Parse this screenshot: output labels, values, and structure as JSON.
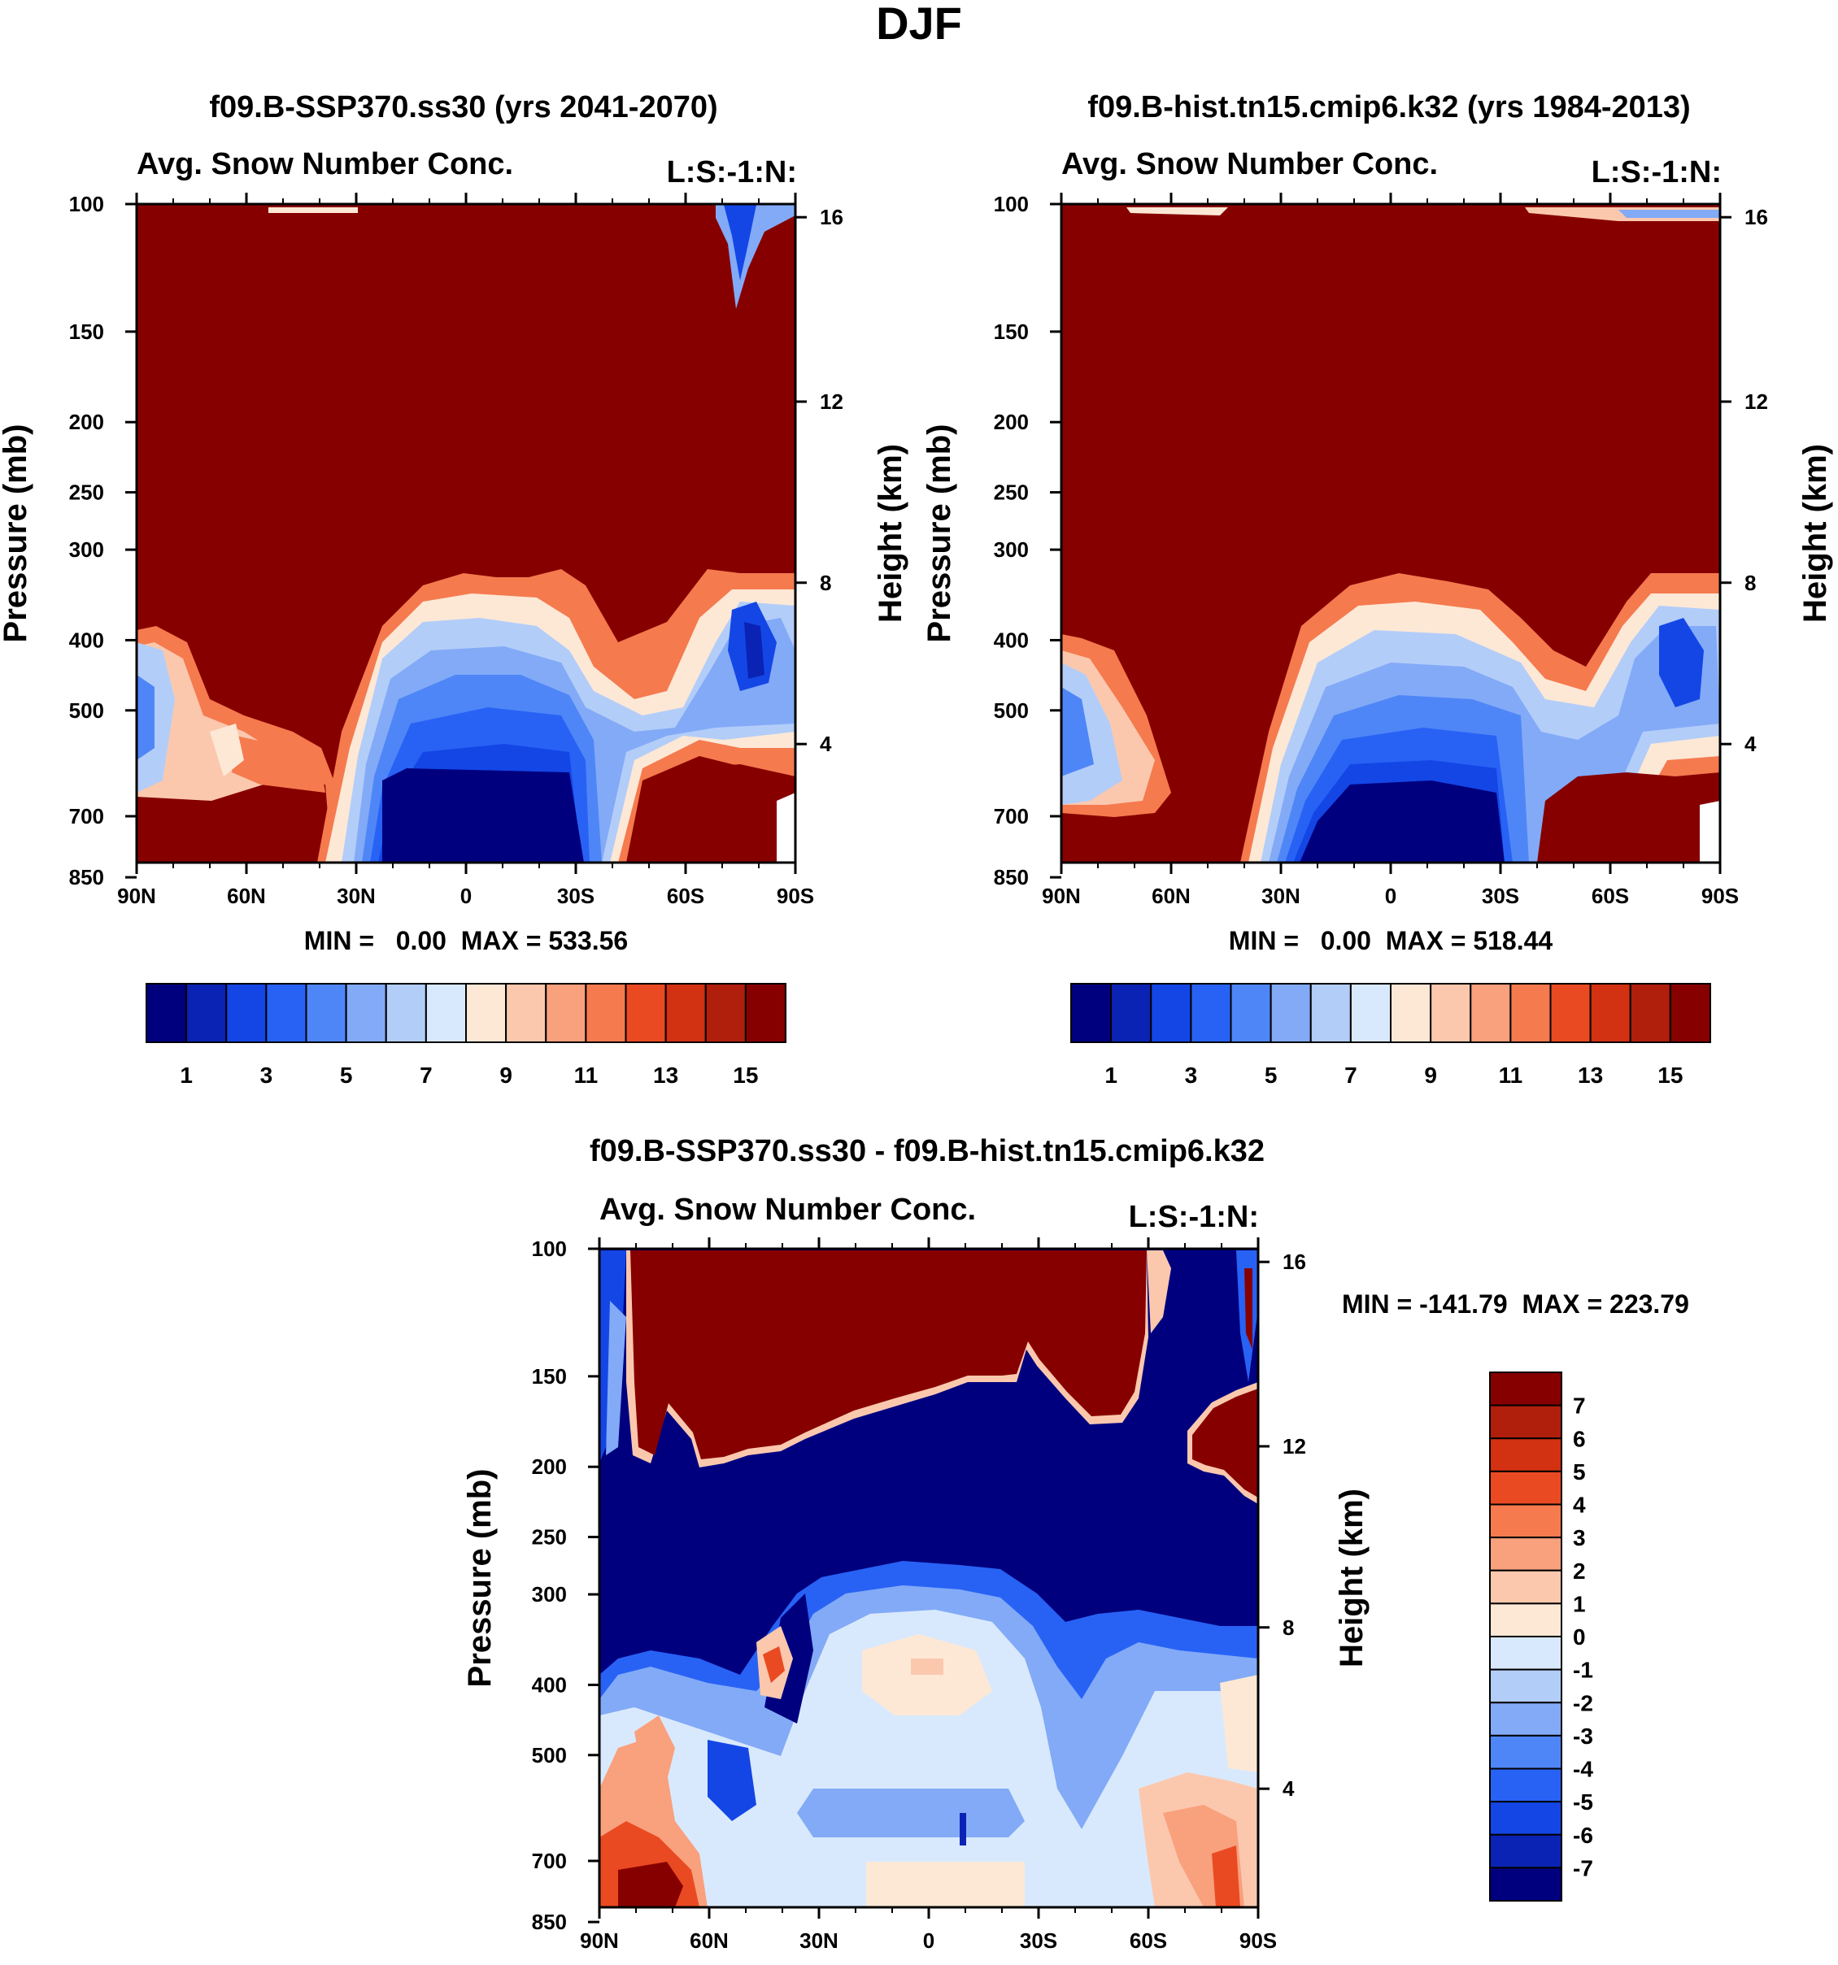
{
  "chart_data": [
    {
      "type": "heatmap",
      "id": "p1",
      "title": "f09.B-SSP370.ss30 (yrs 2041-2070)",
      "left_label": "Avg. Snow Number Conc.",
      "right_label": "L:S:-1:N:",
      "xlabel": "",
      "ylabel": "Pressure (mb)",
      "y2label": "Height (km)",
      "x_ticks": [
        "90N",
        "60N",
        "30N",
        "0",
        "30S",
        "60S",
        "90S"
      ],
      "y_ticks": [
        "100",
        "150",
        "200",
        "250",
        "300",
        "400",
        "500",
        "700",
        "850"
      ],
      "y2_ticks": [
        "16",
        "12",
        "8",
        "4"
      ],
      "stats": "MIN =   0.00  MAX = 533.56",
      "colorbar": {
        "orientation": "horizontal",
        "labels": [
          "1",
          "3",
          "5",
          "7",
          "9",
          "11",
          "13",
          "15"
        ],
        "colors": [
          "#00007f",
          "#0a23b4",
          "#1446e6",
          "#2862f5",
          "#4f86f7",
          "#82aaf7",
          "#b3cdf9",
          "#d9e9fd",
          "#fde8d6",
          "#fbc8ae",
          "#f9a07d",
          "#f57a4e",
          "#ea4a22",
          "#d23112",
          "#b01e0c",
          "#870000"
        ]
      }
    },
    {
      "type": "heatmap",
      "id": "p2",
      "title": "f09.B-hist.tn15.cmip6.k32 (yrs 1984-2013)",
      "left_label": "Avg. Snow Number Conc.",
      "right_label": "L:S:-1:N:",
      "xlabel": "",
      "ylabel": "Pressure (mb)",
      "y2label": "Height (km)",
      "x_ticks": [
        "90N",
        "60N",
        "30N",
        "0",
        "30S",
        "60S",
        "90S"
      ],
      "y_ticks": [
        "100",
        "150",
        "200",
        "250",
        "300",
        "400",
        "500",
        "700",
        "850"
      ],
      "y2_ticks": [
        "16",
        "12",
        "8",
        "4"
      ],
      "stats": "MIN =   0.00  MAX = 518.44",
      "colorbar": {
        "orientation": "horizontal",
        "labels": [
          "1",
          "3",
          "5",
          "7",
          "9",
          "11",
          "13",
          "15"
        ],
        "colors": [
          "#00007f",
          "#0a23b4",
          "#1446e6",
          "#2862f5",
          "#4f86f7",
          "#82aaf7",
          "#b3cdf9",
          "#d9e9fd",
          "#fde8d6",
          "#fbc8ae",
          "#f9a07d",
          "#f57a4e",
          "#ea4a22",
          "#d23112",
          "#b01e0c",
          "#870000"
        ]
      }
    },
    {
      "type": "heatmap",
      "id": "p3",
      "title": "f09.B-SSP370.ss30 - f09.B-hist.tn15.cmip6.k32",
      "left_label": "Avg. Snow Number Conc.",
      "right_label": "L:S:-1:N:",
      "xlabel": "",
      "ylabel": "Pressure (mb)",
      "y2label": "Height (km)",
      "x_ticks": [
        "90N",
        "60N",
        "30N",
        "0",
        "30S",
        "60S",
        "90S"
      ],
      "y_ticks": [
        "100",
        "150",
        "200",
        "250",
        "300",
        "400",
        "500",
        "700",
        "850"
      ],
      "y2_ticks": [
        "16",
        "12",
        "8",
        "4"
      ],
      "stats": "MIN = -141.79  MAX = 223.79",
      "colorbar": {
        "orientation": "vertical",
        "labels": [
          "7",
          "6",
          "5",
          "4",
          "3",
          "2",
          "1",
          "0",
          "-1",
          "-2",
          "-3",
          "-4",
          "-5",
          "-6",
          "-7"
        ],
        "colors": [
          "#870000",
          "#b01e0c",
          "#d23112",
          "#ea4a22",
          "#f57a4e",
          "#f9a07d",
          "#fbc8ae",
          "#fde8d6",
          "#d9e9fd",
          "#b3cdf9",
          "#82aaf7",
          "#4f86f7",
          "#2862f5",
          "#1446e6",
          "#0a23b4",
          "#00007f"
        ]
      }
    }
  ],
  "figure": {
    "season": "DJF"
  }
}
